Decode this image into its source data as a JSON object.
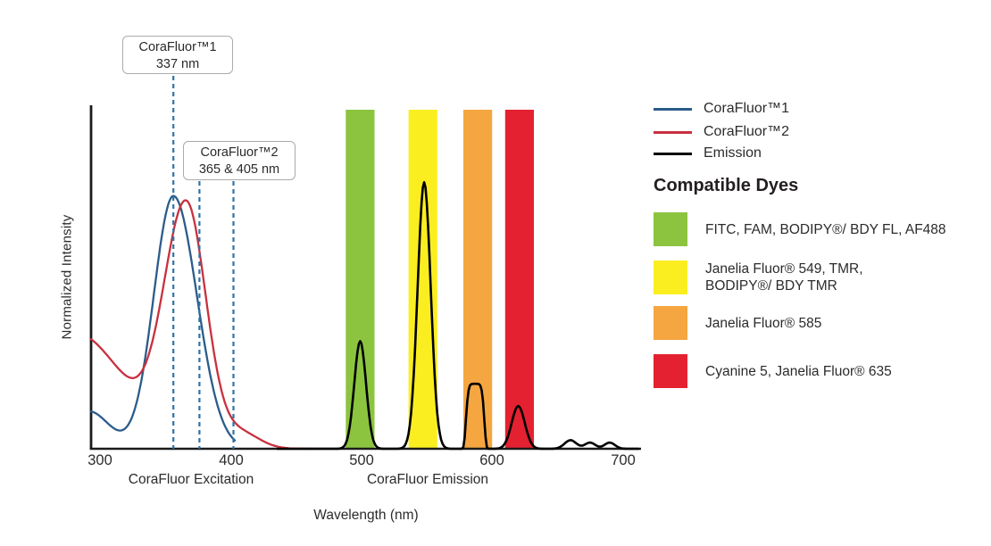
{
  "figure": {
    "y_axis_label": "Normalized Intensity",
    "x_axis_label": "Wavelength (nm)",
    "x_section_labels": [
      "CoraFluor Excitation",
      "CoraFluor Emission"
    ],
    "annotations": [
      {
        "title": "CoraFluor™1",
        "subtitle": "337 nm",
        "line_positions_nm": [
          356
        ]
      },
      {
        "title": "CoraFluor™2",
        "subtitle": "365 & 405 nm",
        "line_positions_nm": [
          376,
          402
        ]
      }
    ],
    "dashed_line_color": "#2E73A6"
  },
  "legend": {
    "items": [
      {
        "label": "CoraFluor™1",
        "color": "#2B5C8A"
      },
      {
        "label": "CoraFluor™2",
        "color": "#C9303E"
      },
      {
        "label": "Emission",
        "color": "#000000"
      }
    ]
  },
  "compatible_dyes": {
    "heading": "Compatible Dyes",
    "items": [
      {
        "label": "FITC, FAM, BODIPY®/ BDY FL, AF488",
        "color": "#8CC43F"
      },
      {
        "label": "Janelia Fluor® 549, TMR,\nBODIPY®/ BDY TMR",
        "color": "#FAEE21"
      },
      {
        "label": "Janelia Fluor® 585",
        "color": "#F5A640"
      },
      {
        "label": "Cyanine 5, Janelia Fluor® 635",
        "color": "#E42130"
      }
    ]
  },
  "chart_data": {
    "type": "line",
    "xlabel": "Wavelength (nm)",
    "ylabel": "Normalized Intensity",
    "x_ticks": [
      300,
      400,
      500,
      600,
      700
    ],
    "xlim": [
      293,
      714
    ],
    "ylim": [
      0,
      1
    ],
    "grid": false,
    "legend_position": "right",
    "bands": [
      {
        "dye_label": "FITC, FAM, BODIPY®/ BDY FL, AF488",
        "color": "#8CC43F",
        "nm": [
          488,
          510
        ]
      },
      {
        "dye_label": "Janelia Fluor® 549, TMR, BODIPY®/ BDY TMR",
        "color": "#FAEE21",
        "nm": [
          536,
          558
        ]
      },
      {
        "dye_label": "Janelia Fluor® 585",
        "color": "#F5A640",
        "nm": [
          578,
          600
        ]
      },
      {
        "dye_label": "Cyanine 5, Janelia Fluor® 635",
        "color": "#E42130",
        "nm": [
          610,
          632
        ]
      }
    ],
    "series": [
      {
        "id": "excitation-curve-corafluor1",
        "name": "CoraFluor™1",
        "color": "#2B5C8A",
        "stroke_width": 2.3,
        "annotated_peaks_nm": [
          337
        ],
        "range_nm": [
          293,
          403
        ],
        "components": [
          {
            "c": 356,
            "s": 15,
            "s2": 18,
            "h": 0.74
          },
          {
            "c": 291,
            "s": 16,
            "h": 0.11
          }
        ]
      },
      {
        "id": "excitation-curve-corafluor2",
        "name": "CoraFluor™2",
        "color": "#C9303E",
        "stroke_width": 2.3,
        "annotated_peaks_nm": [
          365,
          405
        ],
        "range_nm": [
          293,
          462
        ],
        "components": [
          {
            "c": 366,
            "s": 17,
            "s2": 15,
            "h": 0.7
          },
          {
            "c": 280,
            "s": 38,
            "h": 0.34
          },
          {
            "c": 408,
            "s": 14,
            "h": 0.045
          }
        ]
      },
      {
        "id": "emission-curve",
        "name": "Emission",
        "color": "#000000",
        "stroke_width": 2.6,
        "peaks_nm": [
          499,
          548,
          587,
          620
        ],
        "minor_peaks_nm": [
          660,
          675,
          690
        ],
        "range_nm": [
          436,
          712
        ],
        "components": [
          {
            "c": 499,
            "s": 4.5,
            "h": 0.315
          },
          {
            "c": 548,
            "s": 5,
            "h": 0.78
          },
          {
            "c": 587,
            "s": 6.5,
            "p": 6,
            "h": 0.19
          },
          {
            "c": 620,
            "s": 5,
            "h": 0.125
          },
          {
            "c": 660,
            "s": 4.5,
            "h": 0.025
          },
          {
            "c": 675,
            "s": 4,
            "h": 0.018
          },
          {
            "c": 690,
            "s": 4,
            "h": 0.018
          }
        ]
      }
    ]
  }
}
